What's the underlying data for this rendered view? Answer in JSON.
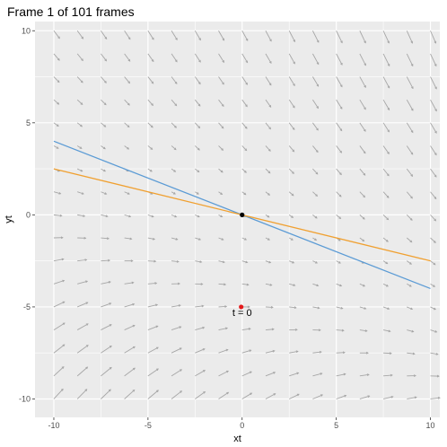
{
  "chart_data": {
    "type": "line",
    "title": "Frame 1 of 101 frames",
    "xlabel": "xt",
    "ylabel": "yt",
    "xlim": [
      -11,
      10.5
    ],
    "ylim": [
      -11,
      10.5
    ],
    "x_ticks": [
      -10,
      -5,
      0,
      5,
      10
    ],
    "y_ticks": [
      -10,
      -5,
      0,
      5,
      10
    ],
    "x_tick_labels": [
      "-10",
      "-5",
      "0",
      "5",
      "10"
    ],
    "y_tick_labels": [
      "-10",
      "-5",
      "0",
      "5",
      "10"
    ],
    "grid": true,
    "background_color": "#ebebeb",
    "grid_color": "#ffffff",
    "vector_field": {
      "color": "#a6a6a6",
      "grid_x": [
        -10,
        -8.75,
        -7.5,
        -6.25,
        -5,
        -3.75,
        -2.5,
        -1.25,
        0,
        1.25,
        2.5,
        3.75,
        5,
        6.25,
        7.5,
        8.75,
        10
      ],
      "grid_y": [
        -10,
        -8.75,
        -7.5,
        -6.25,
        -5,
        -3.75,
        -2.5,
        -1.25,
        0,
        1.25,
        2.5,
        3.75,
        5,
        6.25,
        7.5,
        8.75,
        10
      ]
    },
    "series": [
      {
        "x": [
          -10,
          10
        ],
        "y": [
          4,
          -4
        ],
        "color": "#5b9bd5"
      },
      {
        "x": [
          -10,
          10
        ],
        "y": [
          2.5,
          -2.5
        ],
        "color": "#f0a030"
      }
    ],
    "points": [
      {
        "x": 0,
        "y": 0,
        "color": "#000000"
      },
      {
        "x": -0.05,
        "y": -5,
        "color": "#e41a1c"
      }
    ],
    "annotations": [
      {
        "x": 0,
        "y": -5.3,
        "text": "t = 0"
      }
    ]
  }
}
